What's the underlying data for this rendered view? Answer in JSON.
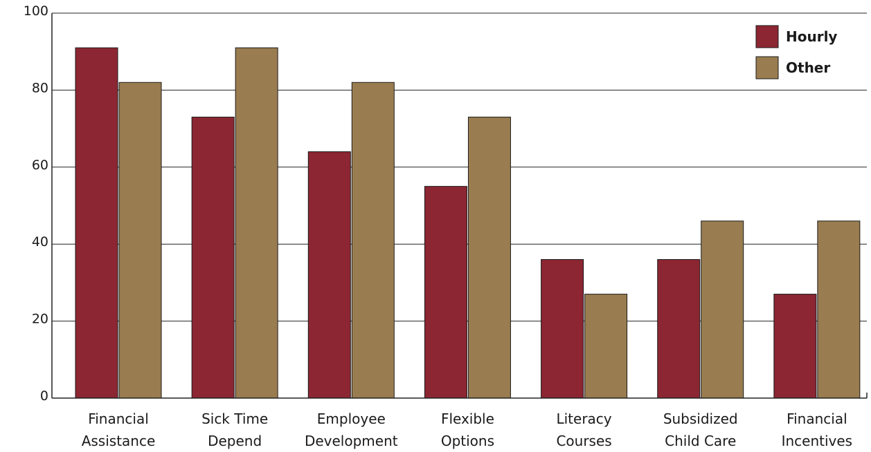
{
  "chart_data": {
    "type": "bar",
    "title": "",
    "xlabel": "",
    "ylabel": "",
    "ylim": [
      0,
      100
    ],
    "yticks": [
      "0",
      "20",
      "40",
      "60",
      "80",
      "100"
    ],
    "grid": true,
    "legend_position": "top-right",
    "categories": [
      [
        "Financial",
        "Assistance"
      ],
      [
        "Sick Time",
        "Depend"
      ],
      [
        "Employee",
        "Development"
      ],
      [
        "Flexible",
        "Options"
      ],
      [
        "Literacy",
        "Courses"
      ],
      [
        "Subsidized",
        "Child Care"
      ],
      [
        "Financial",
        "Incentives"
      ]
    ],
    "series": [
      {
        "name": "Hourly",
        "color": "#8b2632",
        "values": [
          91,
          73,
          64,
          55,
          36,
          36,
          27
        ]
      },
      {
        "name": "Other",
        "color": "#997c50",
        "values": [
          82,
          91,
          82,
          73,
          27,
          46,
          46
        ]
      }
    ]
  }
}
